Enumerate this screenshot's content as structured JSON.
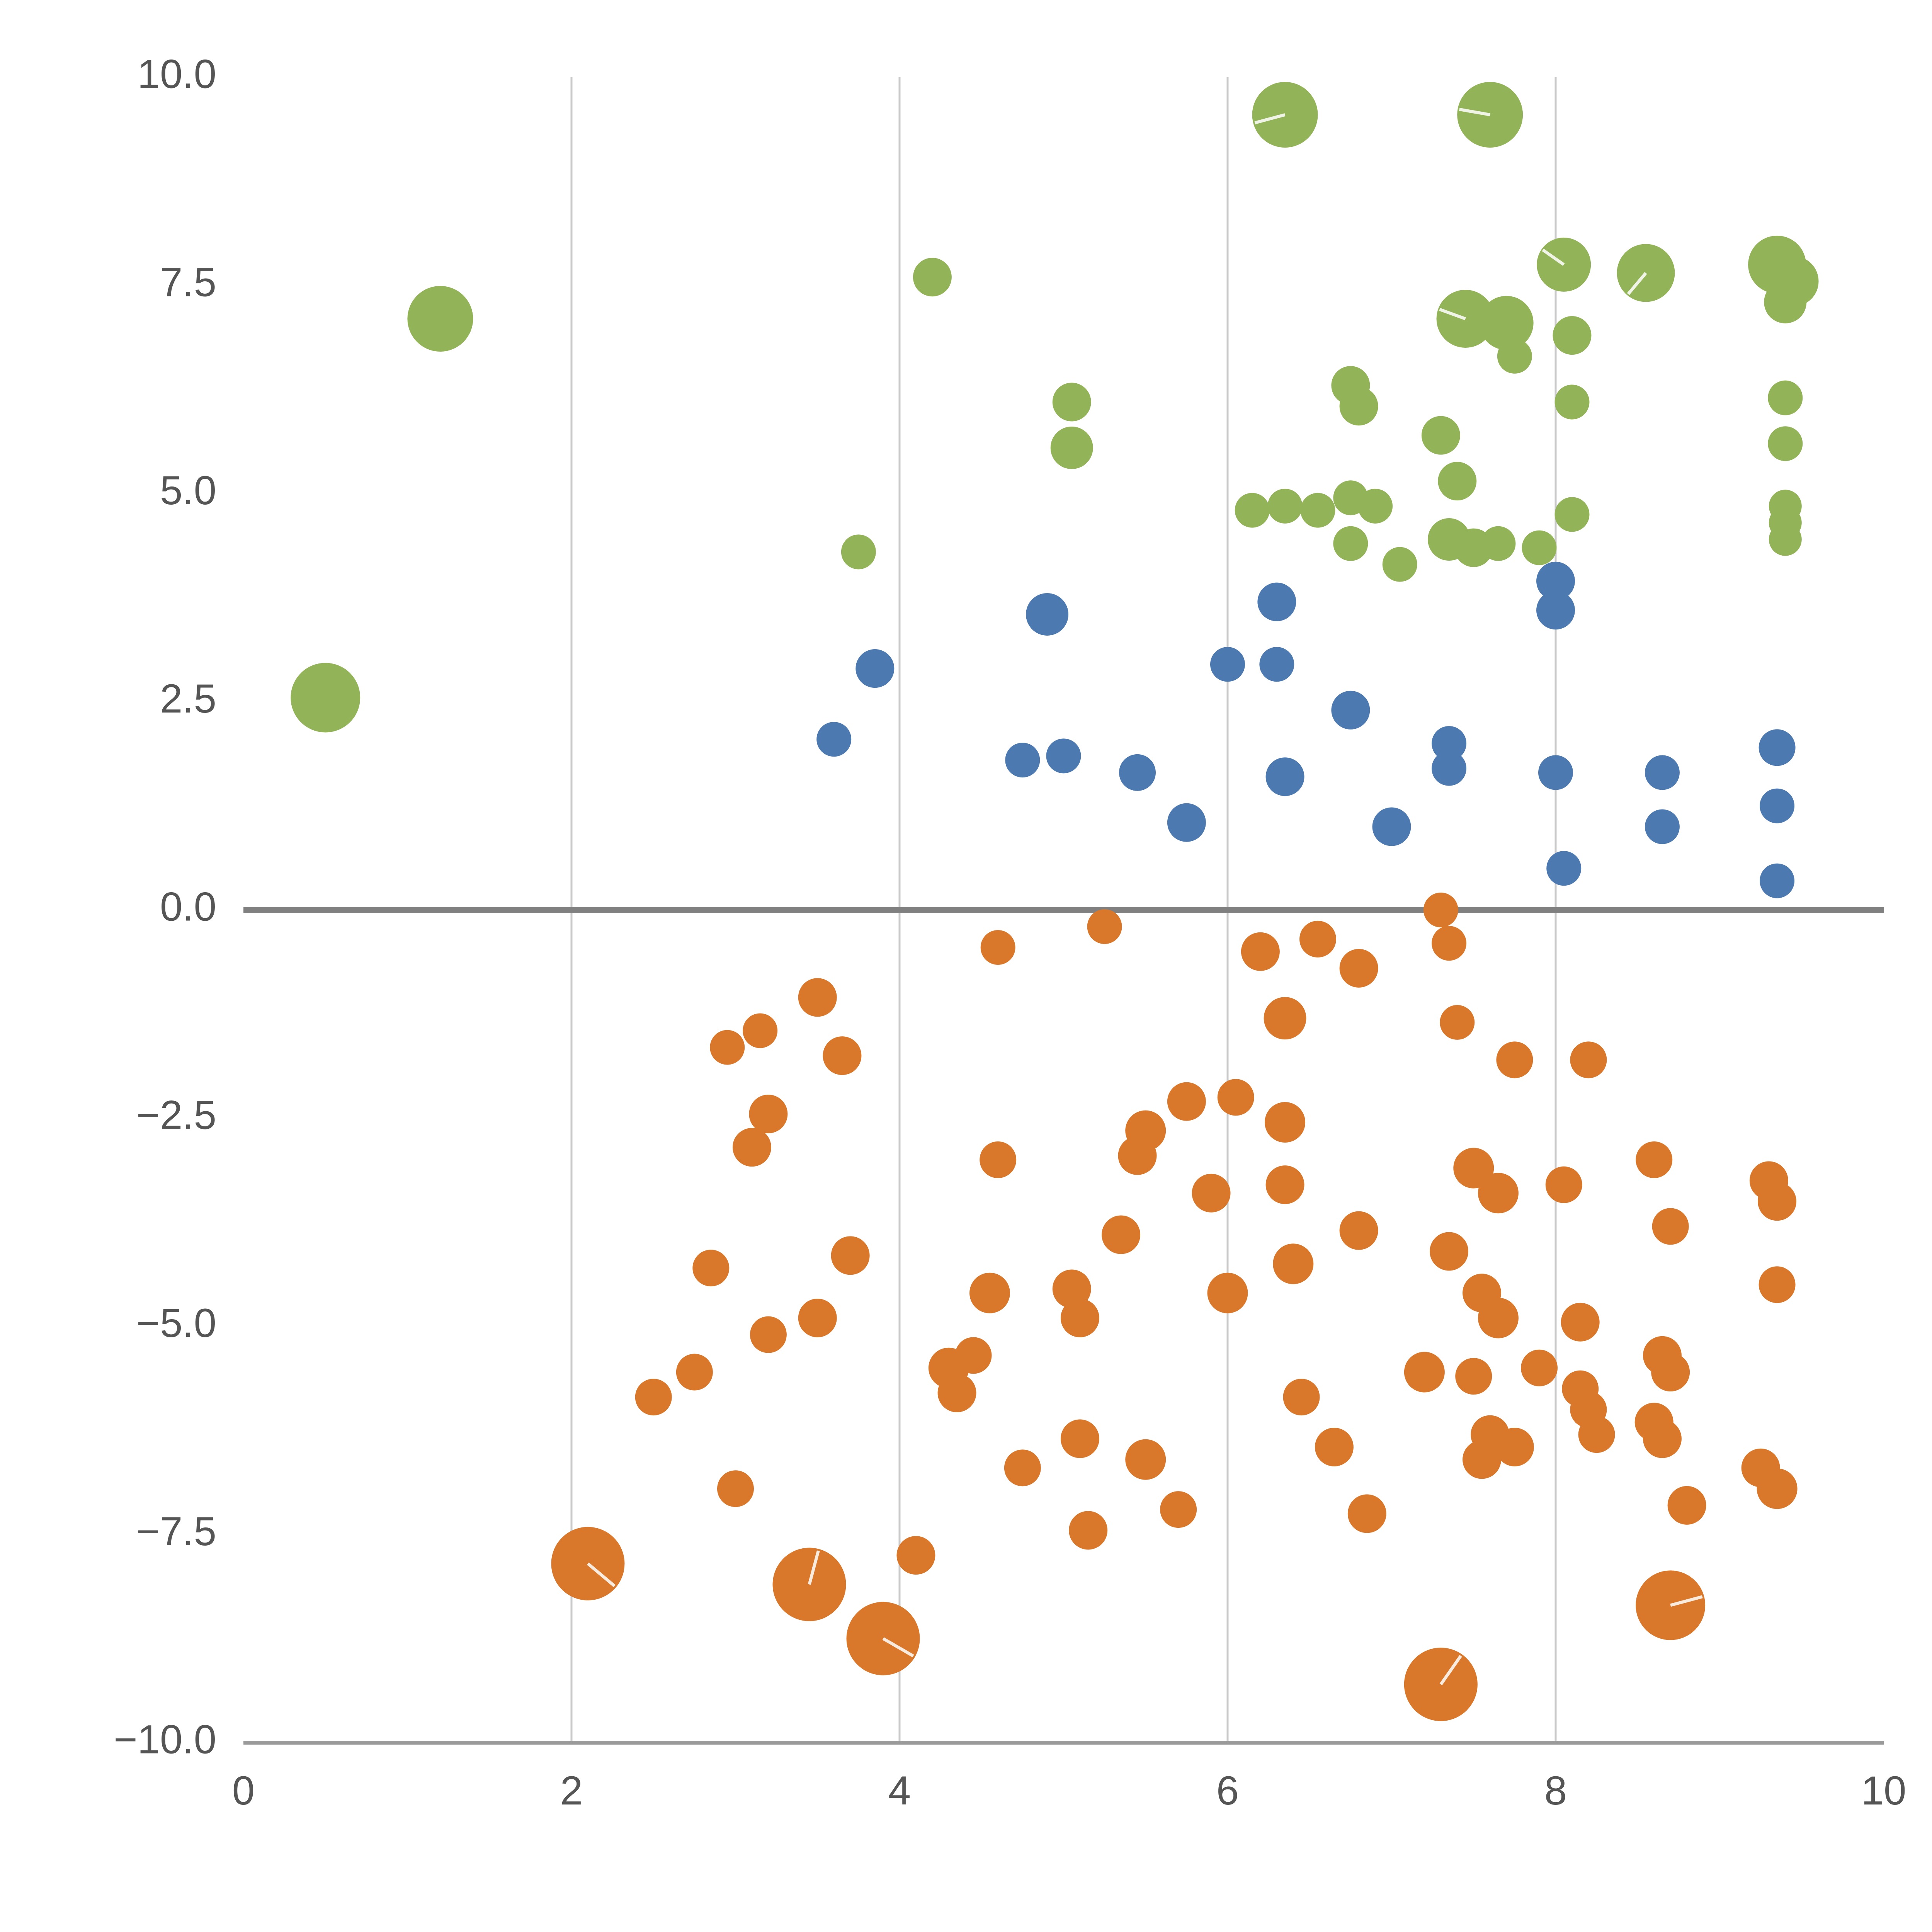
{
  "chart_data": {
    "type": "scatter",
    "title": "",
    "subtitle": "",
    "xlabel": "",
    "ylabel": "",
    "xlim": [
      0,
      10
    ],
    "ylim": [
      -10,
      10
    ],
    "x_tick_values": [
      0,
      2,
      4,
      6,
      8,
      10
    ],
    "x_tick_labels": [
      "0",
      "2",
      "4",
      "6",
      "8",
      "10"
    ],
    "y_tick_values": [
      -10,
      -7.5,
      -5,
      -2.5,
      0,
      2.5,
      5,
      7.5,
      10
    ],
    "y_tick_labels": [
      "−10.0",
      "−7.5",
      "−5.0",
      "−2.5",
      "0.0",
      "2.5",
      "5.0",
      "7.5",
      "10.0"
    ],
    "grid_x_values": [
      2,
      4,
      6,
      8
    ],
    "zero_line_y": 0,
    "grid": "vertical-only",
    "legend_position": "none",
    "colors": {
      "background": "#ffffff",
      "grid": "#c9c9c9",
      "zero_line": "#808080",
      "axis_line": "#9a9a9a",
      "tick_label": "#555555",
      "marker_hairline": "#ffffff"
    },
    "series": [
      {
        "name": "green",
        "color": "#92B358",
        "points": [
          [
            0.5,
            2.55,
            18
          ],
          [
            1.2,
            7.1,
            17
          ],
          [
            4.2,
            7.6,
            10
          ],
          [
            3.75,
            4.3,
            9
          ],
          [
            5.05,
            6.1,
            10
          ],
          [
            5.05,
            5.55,
            11
          ],
          [
            6.35,
            9.55,
            17,
            195
          ],
          [
            7.6,
            9.55,
            17,
            170
          ],
          [
            6.15,
            4.8,
            9
          ],
          [
            6.35,
            4.85,
            9
          ],
          [
            6.55,
            4.8,
            9
          ],
          [
            6.75,
            6.3,
            10
          ],
          [
            6.8,
            6.05,
            10
          ],
          [
            6.75,
            4.95,
            9
          ],
          [
            6.9,
            4.85,
            9
          ],
          [
            6.75,
            4.4,
            9
          ],
          [
            7.05,
            4.15,
            9
          ],
          [
            7.3,
            5.7,
            10
          ],
          [
            7.4,
            5.15,
            10
          ],
          [
            7.35,
            4.45,
            11
          ],
          [
            7.5,
            4.35,
            10
          ],
          [
            7.65,
            4.4,
            9
          ],
          [
            7.9,
            4.35,
            9
          ],
          [
            7.45,
            7.1,
            15,
            160
          ],
          [
            7.7,
            7.05,
            14
          ],
          [
            7.75,
            6.65,
            9
          ],
          [
            8.05,
            7.75,
            14,
            145
          ],
          [
            8.1,
            6.9,
            10
          ],
          [
            8.1,
            6.1,
            9
          ],
          [
            8.1,
            4.75,
            9
          ],
          [
            8.55,
            7.65,
            15,
            230
          ],
          [
            9.35,
            7.75,
            15,
            300
          ],
          [
            9.45,
            7.55,
            13
          ],
          [
            9.4,
            7.3,
            11
          ],
          [
            9.4,
            6.15,
            9
          ],
          [
            9.4,
            5.6,
            9
          ],
          [
            9.4,
            4.85,
            8.5
          ],
          [
            9.4,
            4.65,
            8.5
          ],
          [
            9.4,
            4.45,
            8.5
          ]
        ]
      },
      {
        "name": "blue",
        "color": "#4C79B0",
        "points": [
          [
            3.6,
            2.05,
            9
          ],
          [
            3.85,
            2.9,
            10
          ],
          [
            4.9,
            3.55,
            11
          ],
          [
            4.75,
            1.8,
            9
          ],
          [
            5.0,
            1.85,
            9
          ],
          [
            5.45,
            1.65,
            9.5
          ],
          [
            5.75,
            1.05,
            10
          ],
          [
            6.0,
            2.95,
            9
          ],
          [
            6.3,
            3.7,
            10
          ],
          [
            6.3,
            2.95,
            9
          ],
          [
            6.35,
            1.6,
            10
          ],
          [
            6.75,
            2.4,
            10
          ],
          [
            7.0,
            1.0,
            10
          ],
          [
            7.35,
            2.0,
            9
          ],
          [
            7.35,
            1.7,
            9
          ],
          [
            8.0,
            3.95,
            10
          ],
          [
            8.0,
            3.6,
            10
          ],
          [
            8.0,
            1.65,
            9
          ],
          [
            8.05,
            0.5,
            9
          ],
          [
            8.65,
            1.65,
            9
          ],
          [
            8.65,
            1.0,
            9
          ],
          [
            9.35,
            1.95,
            9.5
          ],
          [
            9.35,
            1.25,
            9
          ],
          [
            9.35,
            0.35,
            9
          ]
        ]
      },
      {
        "name": "orange",
        "color": "#D9782B",
        "points": [
          [
            5.25,
            -0.2,
            9
          ],
          [
            4.6,
            -0.45,
            9
          ],
          [
            6.2,
            -0.5,
            10
          ],
          [
            6.55,
            -0.35,
            9.5
          ],
          [
            6.8,
            -0.7,
            10
          ],
          [
            7.3,
            0.0,
            9
          ],
          [
            7.35,
            -0.4,
            9
          ],
          [
            3.5,
            -1.05,
            10
          ],
          [
            3.15,
            -1.45,
            9
          ],
          [
            2.95,
            -1.65,
            9
          ],
          [
            3.65,
            -1.75,
            10
          ],
          [
            6.35,
            -1.3,
            11
          ],
          [
            7.4,
            -1.35,
            9
          ],
          [
            7.75,
            -1.8,
            9.5
          ],
          [
            8.2,
            -1.8,
            9.5
          ],
          [
            3.2,
            -2.45,
            10
          ],
          [
            3.1,
            -2.85,
            10
          ],
          [
            5.75,
            -2.3,
            10
          ],
          [
            6.05,
            -2.25,
            9.5
          ],
          [
            4.6,
            -3.0,
            9.5
          ],
          [
            5.5,
            -2.65,
            10.5
          ],
          [
            5.45,
            -2.95,
            10
          ],
          [
            5.9,
            -3.4,
            10
          ],
          [
            6.35,
            -2.55,
            10.5
          ],
          [
            6.35,
            -3.3,
            10
          ],
          [
            7.5,
            -3.1,
            10.5
          ],
          [
            7.65,
            -3.4,
            10.5
          ],
          [
            8.05,
            -3.3,
            9.5
          ],
          [
            8.6,
            -3.0,
            9.5
          ],
          [
            8.7,
            -3.8,
            9.5
          ],
          [
            9.3,
            -3.25,
            10
          ],
          [
            9.35,
            -3.5,
            10
          ],
          [
            9.35,
            -4.5,
            9.5
          ],
          [
            2.85,
            -4.3,
            9.5
          ],
          [
            3.2,
            -5.1,
            9.5
          ],
          [
            3.5,
            -4.9,
            10
          ],
          [
            3.7,
            -4.15,
            10
          ],
          [
            4.55,
            -4.6,
            10.5
          ],
          [
            5.05,
            -4.55,
            10
          ],
          [
            5.1,
            -4.9,
            10
          ],
          [
            5.35,
            -3.9,
            10
          ],
          [
            6.0,
            -4.6,
            10.5
          ],
          [
            6.4,
            -4.25,
            10.5
          ],
          [
            6.8,
            -3.85,
            10
          ],
          [
            7.35,
            -4.1,
            10
          ],
          [
            7.55,
            -4.6,
            10
          ],
          [
            7.65,
            -4.9,
            10.5
          ],
          [
            8.15,
            -4.95,
            10
          ],
          [
            2.5,
            -5.85,
            9.5
          ],
          [
            2.75,
            -5.55,
            9.5
          ],
          [
            3.0,
            -6.95,
            9.5
          ],
          [
            4.3,
            -5.5,
            10.5
          ],
          [
            4.35,
            -5.8,
            10
          ],
          [
            4.45,
            -5.35,
            9.5
          ],
          [
            4.75,
            -6.7,
            9.5
          ],
          [
            5.1,
            -6.35,
            10
          ],
          [
            5.5,
            -6.6,
            10.5
          ],
          [
            5.7,
            -7.2,
            9.5
          ],
          [
            5.15,
            -7.45,
            10
          ],
          [
            6.45,
            -5.85,
            9.5
          ],
          [
            6.65,
            -6.45,
            10
          ],
          [
            6.85,
            -7.25,
            10
          ],
          [
            7.2,
            -5.55,
            10.5
          ],
          [
            7.5,
            -5.6,
            9.5
          ],
          [
            7.55,
            -6.6,
            10
          ],
          [
            7.6,
            -6.3,
            10
          ],
          [
            7.75,
            -6.45,
            10
          ],
          [
            7.9,
            -5.5,
            9.5
          ],
          [
            8.15,
            -5.75,
            9.5
          ],
          [
            8.2,
            -6.0,
            9.5
          ],
          [
            8.25,
            -6.3,
            9.5
          ],
          [
            8.6,
            -6.15,
            10
          ],
          [
            8.65,
            -6.35,
            10
          ],
          [
            8.65,
            -5.35,
            10
          ],
          [
            8.7,
            -5.55,
            10
          ],
          [
            8.8,
            -7.15,
            10
          ],
          [
            9.25,
            -6.7,
            10
          ],
          [
            9.35,
            -6.95,
            10.5
          ],
          [
            2.1,
            -7.85,
            19,
            320
          ],
          [
            3.45,
            -8.1,
            19,
            75
          ],
          [
            3.9,
            -8.75,
            19,
            330
          ],
          [
            4.1,
            -7.75,
            10
          ],
          [
            7.3,
            -9.3,
            19,
            55
          ],
          [
            8.7,
            -8.35,
            18,
            15
          ]
        ]
      }
    ]
  }
}
